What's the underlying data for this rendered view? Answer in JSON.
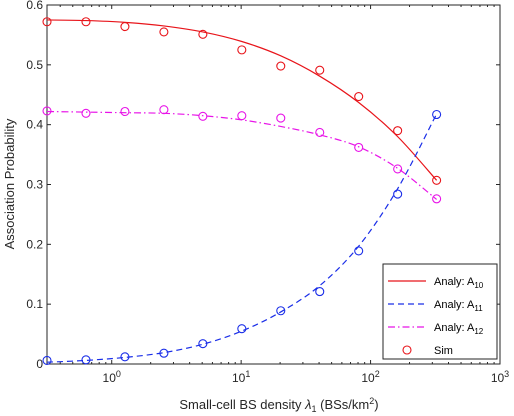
{
  "chart_data": {
    "type": "line",
    "title": "",
    "xlabel": {
      "prefix": "Small-cell BS density ",
      "symbol": "λ",
      "symbol_sub": "1",
      "unit_open": " (BSs/km",
      "unit_sup": "2",
      "unit_close": ")"
    },
    "ylabel": "Association Probability",
    "x_scale": "log",
    "xlim": [
      0.3162,
      1000
    ],
    "ylim": [
      0,
      0.6
    ],
    "x_ticks": [
      {
        "value": 1,
        "base": "10",
        "exp": "0"
      },
      {
        "value": 10,
        "base": "10",
        "exp": "1"
      },
      {
        "value": 100,
        "base": "10",
        "exp": "2"
      },
      {
        "value": 1000,
        "base": "10",
        "exp": "3"
      }
    ],
    "y_ticks": [
      {
        "value": 0,
        "label": "0"
      },
      {
        "value": 0.1,
        "label": "0.1"
      },
      {
        "value": 0.2,
        "label": "0.2"
      },
      {
        "value": 0.3,
        "label": "0.3"
      },
      {
        "value": 0.4,
        "label": "0.4"
      },
      {
        "value": 0.5,
        "label": "0.5"
      },
      {
        "value": 0.6,
        "label": "0.6"
      }
    ],
    "grid": false,
    "legend_position": "bottom-right",
    "series": [
      {
        "name": "Analy: A",
        "name_sub": "10",
        "style": "solid",
        "color": "#e8141a",
        "marker": "none",
        "x": [
          0.3162,
          0.6325,
          1.265,
          2.53,
          5.06,
          10.12,
          20.24,
          40.48,
          80.96,
          161.9,
          323.8
        ],
        "y": [
          0.575,
          0.574,
          0.571,
          0.565,
          0.555,
          0.539,
          0.515,
          0.481,
          0.437,
          0.38,
          0.307
        ]
      },
      {
        "name": "Analy: A",
        "name_sub": "11",
        "style": "dashed",
        "color": "#1a2ee8",
        "marker": "none",
        "x": [
          0.3162,
          0.6325,
          1.265,
          2.53,
          5.06,
          10.12,
          20.24,
          40.48,
          80.96,
          161.9,
          323.8
        ],
        "y": [
          0.003,
          0.006,
          0.011,
          0.019,
          0.033,
          0.055,
          0.087,
          0.131,
          0.197,
          0.293,
          0.418
        ]
      },
      {
        "name": "Analy: A",
        "name_sub": "12",
        "style": "dashdot",
        "color": "#e814e8",
        "marker": "none",
        "x": [
          0.3162,
          0.6325,
          1.265,
          2.53,
          5.06,
          10.12,
          20.24,
          40.48,
          80.96,
          161.9,
          323.8
        ],
        "y": [
          0.422,
          0.421,
          0.42,
          0.419,
          0.415,
          0.408,
          0.397,
          0.383,
          0.363,
          0.327,
          0.275
        ]
      },
      {
        "name": "Sim",
        "name_sub": "",
        "style": "none",
        "color": "#e8141a",
        "marker": "circle",
        "x": [
          0.3162,
          0.6325,
          1.265,
          2.53,
          5.06,
          10.12,
          20.24,
          40.48,
          80.96,
          161.9,
          323.8
        ],
        "y": [
          0.572,
          0.572,
          0.564,
          0.555,
          0.551,
          0.525,
          0.498,
          0.491,
          0.447,
          0.39,
          0.307
        ]
      }
    ],
    "sim_markers": [
      {
        "color": "#1a2ee8",
        "x": [
          0.3162,
          0.6325,
          1.265,
          2.53,
          5.06,
          10.12,
          20.24,
          40.48,
          80.96,
          161.9,
          323.8
        ],
        "y": [
          0.006,
          0.007,
          0.012,
          0.018,
          0.034,
          0.059,
          0.089,
          0.121,
          0.189,
          0.284,
          0.417
        ]
      },
      {
        "color": "#e814e8",
        "x": [
          0.3162,
          0.6325,
          1.265,
          2.53,
          5.06,
          10.12,
          20.24,
          40.48,
          80.96,
          161.9,
          323.8
        ],
        "y": [
          0.423,
          0.419,
          0.422,
          0.425,
          0.414,
          0.415,
          0.411,
          0.387,
          0.362,
          0.326,
          0.276
        ]
      }
    ]
  }
}
